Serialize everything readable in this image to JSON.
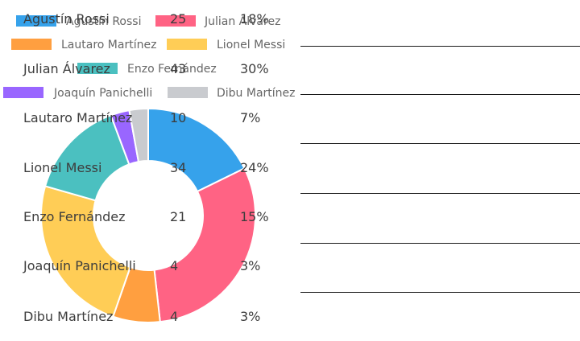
{
  "chart_data": {
    "type": "pie",
    "variant": "donut",
    "legend_position": "top",
    "categories": [
      "Agustín Rossi",
      "Julian Alvarez",
      "Lautaro Martínez",
      "Lionel Messi",
      "Enzo Fernández",
      "Joaquín Panichelli",
      "Dibu Martínez"
    ],
    "values": [
      25,
      43,
      10,
      34,
      21,
      4,
      4
    ],
    "colors": [
      "#36a2eb",
      "#ff6384",
      "#ff9f40",
      "#ffcd56",
      "#4bc0c0",
      "#9966ff",
      "#c9cbcf"
    ]
  },
  "table": {
    "rows": [
      {
        "name": "Agustín Rossi",
        "votes": "25",
        "pct": "18%"
      },
      {
        "name": "Julian Álvarez",
        "votes": "43",
        "pct": "30%"
      },
      {
        "name": "Lautaro Martínez",
        "votes": "10",
        "pct": "7%"
      },
      {
        "name": "Lionel Messi",
        "votes": "34",
        "pct": "24%"
      },
      {
        "name": "Enzo Fernández",
        "votes": "21",
        "pct": "15%"
      },
      {
        "name": "Joaquín Panichelli",
        "votes": "4",
        "pct": "3%"
      },
      {
        "name": "Dibu Martínez",
        "votes": "4",
        "pct": "3%"
      }
    ]
  }
}
